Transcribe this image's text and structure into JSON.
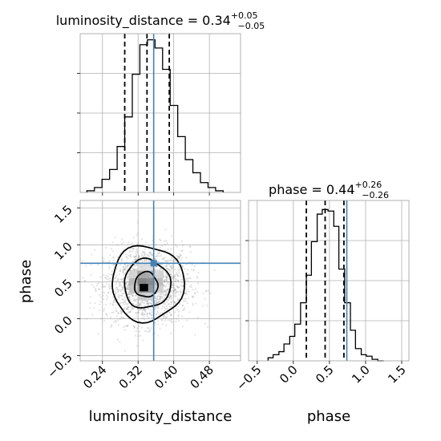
{
  "chart_data": [
    {
      "type": "histogram",
      "panel": "luminosity_distance-marginal",
      "title": {
        "lead": "luminosity_distance = 0.34",
        "sup": "+0.05",
        "sub": "−0.05"
      },
      "x_range": [
        0.19,
        0.55
      ],
      "grid": true,
      "bin_edges": [
        0.205,
        0.222,
        0.239,
        0.256,
        0.273,
        0.29,
        0.307,
        0.324,
        0.341,
        0.358,
        0.375,
        0.392,
        0.409,
        0.426,
        0.443,
        0.46,
        0.477,
        0.494,
        0.511
      ],
      "counts": [
        1,
        3,
        8,
        14,
        28,
        46,
        72,
        90,
        93,
        88,
        75,
        53,
        34,
        20,
        12,
        6,
        3,
        1
      ],
      "quantile_lines": [
        0.29,
        0.34,
        0.39
      ],
      "truth_line": 0.355,
      "line_color": "#000000",
      "truth_color": "#4682b4"
    },
    {
      "type": "scatter",
      "panel": "joint-density",
      "xlabel": "luminosity_distance",
      "ylabel": "phase",
      "x_range": [
        0.19,
        0.55
      ],
      "y_range": [
        -0.57,
        1.6
      ],
      "x_ticks": [
        "0.24",
        "0.32",
        "0.40",
        "0.48"
      ],
      "y_ticks": [
        "−0.5",
        "0.0",
        "0.5",
        "1.0",
        "1.5"
      ],
      "x_tick_values": [
        0.24,
        0.32,
        0.4,
        0.48
      ],
      "y_tick_values": [
        -0.5,
        0,
        0.5,
        1,
        1.5
      ],
      "grid": true,
      "samples": {
        "count": 1800,
        "mean": [
          0.34,
          0.45
        ],
        "std": [
          0.048,
          0.26
        ],
        "color": "#7f7f7f"
      },
      "density_cells": [
        {
          "x": 0.328,
          "y": 0.5,
          "level": 0.55
        },
        {
          "x": 0.347,
          "y": 0.5,
          "level": 0.5
        },
        {
          "x": 0.309,
          "y": 0.5,
          "level": 0.3
        },
        {
          "x": 0.328,
          "y": 0.6,
          "level": 0.38
        },
        {
          "x": 0.347,
          "y": 0.6,
          "level": 0.35
        },
        {
          "x": 0.328,
          "y": 0.4,
          "level": 0.42
        },
        {
          "x": 0.347,
          "y": 0.4,
          "level": 0.45
        },
        {
          "x": 0.309,
          "y": 0.4,
          "level": 0.25
        },
        {
          "x": 0.366,
          "y": 0.5,
          "level": 0.28
        },
        {
          "x": 0.328,
          "y": 0.3,
          "level": 0.22
        },
        {
          "x": 0.347,
          "y": 0.3,
          "level": 0.2
        },
        {
          "x": 0.309,
          "y": 0.6,
          "level": 0.18
        },
        {
          "x": 0.366,
          "y": 0.6,
          "level": 0.18
        },
        {
          "x": 0.366,
          "y": 0.4,
          "level": 0.2
        },
        {
          "x": 0.328,
          "y": 0.7,
          "level": 0.12
        },
        {
          "x": 0.347,
          "y": 0.7,
          "level": 0.12
        }
      ],
      "contours": [
        {
          "cx": 0.338,
          "cy": 0.46,
          "rx": 0.026,
          "ry": 0.17
        },
        {
          "cx": 0.34,
          "cy": 0.47,
          "rx": 0.052,
          "ry": 0.33
        },
        {
          "cx": 0.341,
          "cy": 0.48,
          "rx": 0.081,
          "ry": 0.51
        }
      ],
      "peak": {
        "x": 0.333,
        "y": 0.42
      },
      "truth": {
        "x": 0.355,
        "y": 0.75
      },
      "truth_color": "#4682b4"
    },
    {
      "type": "histogram",
      "panel": "phase-marginal",
      "title": {
        "lead": "phase = 0.44",
        "sup": "+0.26",
        "sub": "−0.26"
      },
      "xlabel": "phase",
      "x_range": [
        -0.62,
        1.6
      ],
      "x_ticks": [
        "−0.5",
        "0.0",
        "0.5",
        "1.0",
        "1.5"
      ],
      "x_tick_values": [
        -0.5,
        0,
        0.5,
        1,
        1.5
      ],
      "grid": true,
      "bin_edges": [
        -0.35,
        -0.28,
        -0.2,
        -0.13,
        -0.05,
        0.02,
        0.1,
        0.18,
        0.25,
        0.33,
        0.4,
        0.48,
        0.56,
        0.63,
        0.71,
        0.79,
        0.86,
        0.94,
        1.01,
        1.09,
        1.17,
        1.25
      ],
      "counts": [
        2,
        4,
        6,
        11,
        16,
        24,
        38,
        56,
        78,
        96,
        99,
        98,
        88,
        60,
        38,
        20,
        8,
        4,
        3,
        1,
        0
      ],
      "quantile_lines": [
        0.18,
        0.44,
        0.7
      ],
      "truth_line": 0.74,
      "line_color": "#000000",
      "truth_color": "#4682b4"
    }
  ]
}
